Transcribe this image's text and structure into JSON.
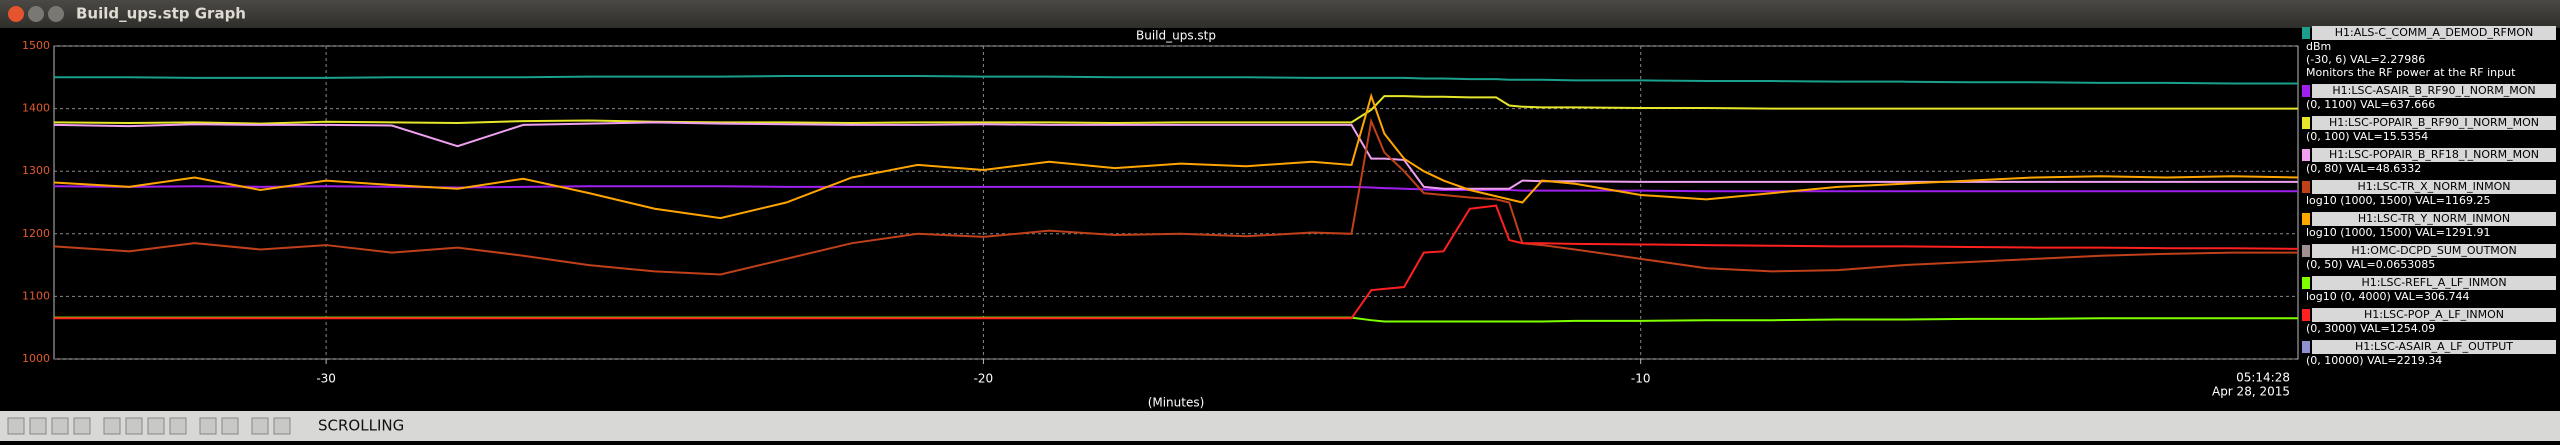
{
  "window": {
    "title": "Build_ups.stp Graph"
  },
  "chart_data": {
    "type": "line",
    "title": "Build_ups.stp",
    "xlabel": "(Minutes)",
    "time_label": "05:14:28",
    "date_label": "Apr 28, 2015",
    "xlim": [
      -34.14,
      0
    ],
    "xticks": [
      -30,
      -20,
      -10
    ],
    "ylim": [
      1000,
      1500
    ],
    "yticks": [
      1000,
      1100,
      1200,
      1300,
      1400,
      1500
    ],
    "grid": true,
    "x": [
      -34.14,
      -33,
      -32,
      -31,
      -30,
      -29,
      -28,
      -27,
      -26,
      -25,
      -24,
      -23,
      -22,
      -21,
      -20,
      -19,
      -18,
      -17,
      -16,
      -15,
      -14.4,
      -14.1,
      -13.9,
      -13.6,
      -13.3,
      -13.0,
      -12.6,
      -12.2,
      -12.0,
      -11.8,
      -11.5,
      -11,
      -10,
      -9,
      -8,
      -7,
      -6,
      -5,
      -4,
      -3,
      -2,
      -1,
      0
    ],
    "series": [
      {
        "name": "H1:ALS-C_COMM_A_DEMOD_RFMON",
        "color": "#1aa08c",
        "info": [
          "dBm",
          "(-30, 6) VAL=2.27986",
          "Monitors the RF power at the RF input"
        ],
        "values": [
          1450,
          1450,
          1449,
          1449,
          1449,
          1450,
          1450,
          1450,
          1451,
          1451,
          1451,
          1452,
          1452,
          1452,
          1451,
          1451,
          1450,
          1450,
          1450,
          1449,
          1449,
          1449,
          1449,
          1449,
          1448,
          1448,
          1447,
          1447,
          1446,
          1446,
          1446,
          1445,
          1445,
          1444,
          1444,
          1443,
          1443,
          1442,
          1442,
          1441,
          1441,
          1440,
          1440
        ]
      },
      {
        "name": "H1:LSC-ASAIR_B_RF90_I_NORM_MON",
        "color": "#a020f0",
        "info": [
          "(0, 1100) VAL=637.666"
        ],
        "values": [
          1276,
          1275,
          1276,
          1275,
          1276,
          1275,
          1274,
          1275,
          1276,
          1276,
          1276,
          1275,
          1275,
          1275,
          1275,
          1275,
          1275,
          1275,
          1275,
          1275,
          1275,
          1274,
          1273,
          1272,
          1271,
          1270,
          1270,
          1270,
          1270,
          1269,
          1269,
          1269,
          1269,
          1268,
          1268,
          1268,
          1268,
          1268,
          1268,
          1268,
          1268,
          1268,
          1268
        ]
      },
      {
        "name": "H1:LSC-POPAIR_B_RF90_I_NORM_MON",
        "color": "#e6e62a",
        "info": [
          "(0, 100) VAL=15.5354"
        ],
        "values": [
          1378,
          1377,
          1378,
          1376,
          1379,
          1378,
          1377,
          1380,
          1381,
          1379,
          1378,
          1378,
          1377,
          1378,
          1378,
          1378,
          1377,
          1378,
          1378,
          1378,
          1378,
          1398,
          1420,
          1420,
          1419,
          1419,
          1418,
          1418,
          1405,
          1403,
          1402,
          1402,
          1401,
          1401,
          1400,
          1400,
          1400,
          1400,
          1400,
          1400,
          1400,
          1400,
          1400
        ]
      },
      {
        "name": "H1:LSC-POPAIR_B_RF18_I_NORM_MON",
        "color": "#f0a0f0",
        "info": [
          "(0, 80) VAL=48.6332"
        ],
        "values": [
          1374,
          1372,
          1375,
          1374,
          1374,
          1373,
          1340,
          1374,
          1376,
          1378,
          1376,
          1375,
          1374,
          1374,
          1375,
          1374,
          1374,
          1374,
          1374,
          1374,
          1374,
          1320,
          1320,
          1318,
          1275,
          1272,
          1272,
          1272,
          1272,
          1285,
          1284,
          1284,
          1283,
          1283,
          1283,
          1283,
          1283,
          1283,
          1283,
          1283,
          1283,
          1283,
          1283
        ]
      },
      {
        "name": "H1:LSC-TR_X_NORM_INMON",
        "color": "#c0401a",
        "info": [
          "log10 (1000, 1500) VAL=1169.25"
        ],
        "values": [
          1180,
          1172,
          1185,
          1175,
          1182,
          1170,
          1178,
          1165,
          1150,
          1140,
          1135,
          1160,
          1185,
          1200,
          1195,
          1205,
          1198,
          1200,
          1196,
          1202,
          1200,
          1380,
          1330,
          1300,
          1265,
          1262,
          1258,
          1255,
          1250,
          1185,
          1182,
          1175,
          1160,
          1145,
          1140,
          1142,
          1150,
          1155,
          1160,
          1165,
          1168,
          1170,
          1170
        ]
      },
      {
        "name": "H1:LSC-TR_Y_NORM_INMON",
        "color": "#ffa500",
        "info": [
          "log10 (1000, 1500) VAL=1291.91"
        ],
        "values": [
          1282,
          1275,
          1290,
          1270,
          1285,
          1278,
          1272,
          1288,
          1265,
          1240,
          1225,
          1250,
          1290,
          1310,
          1302,
          1315,
          1305,
          1312,
          1308,
          1315,
          1310,
          1420,
          1360,
          1320,
          1300,
          1285,
          1270,
          1260,
          1255,
          1250,
          1285,
          1280,
          1262,
          1255,
          1265,
          1275,
          1280,
          1285,
          1290,
          1292,
          1290,
          1292,
          1290
        ]
      },
      {
        "name": "H1:OMC-DCPD_SUM_OUTMON",
        "color": "#a09090",
        "info": [
          "(0, 50) VAL=0.0653085"
        ],
        "values": [
          null,
          null,
          null,
          null,
          null,
          null,
          null,
          null,
          null,
          null,
          null,
          null,
          null,
          null,
          null,
          null,
          null,
          null,
          null,
          null,
          null,
          null,
          null,
          null,
          null,
          null,
          null,
          null,
          null,
          null,
          null,
          null,
          null,
          null,
          null,
          null,
          null,
          null,
          null,
          null,
          null,
          null,
          null
        ]
      },
      {
        "name": "H1:LSC-REFL_A_LF_INMON",
        "color": "#7fff00",
        "info": [
          "log10 (0, 4000) VAL=306.744"
        ],
        "values": [
          1066,
          1066,
          1066,
          1066,
          1066,
          1066,
          1066,
          1066,
          1066,
          1066,
          1066,
          1066,
          1066,
          1066,
          1066,
          1066,
          1066,
          1066,
          1066,
          1066,
          1066,
          1062,
          1060,
          1060,
          1060,
          1060,
          1060,
          1060,
          1060,
          1060,
          1060,
          1061,
          1061,
          1062,
          1062,
          1063,
          1063,
          1064,
          1064,
          1065,
          1065,
          1065,
          1065
        ]
      },
      {
        "name": "H1:LSC-POP_A_LF_INMON",
        "color": "#ff2020",
        "info": [
          "(0, 3000) VAL=1254.09"
        ],
        "values": [
          1065,
          1065,
          1065,
          1065,
          1065,
          1065,
          1065,
          1065,
          1065,
          1065,
          1065,
          1065,
          1065,
          1065,
          1065,
          1065,
          1065,
          1065,
          1065,
          1065,
          1065,
          1110,
          1112,
          1115,
          1170,
          1172,
          1240,
          1245,
          1190,
          1185,
          1185,
          1184,
          1183,
          1182,
          1181,
          1180,
          1180,
          1179,
          1178,
          1178,
          1177,
          1177,
          1176
        ]
      },
      {
        "name": "H1:LSC-ASAIR_A_LF_OUTPUT",
        "color": "#9090d0",
        "info": [
          "(0, 10000) VAL=2219.34"
        ],
        "values": [
          null,
          null,
          null,
          null,
          null,
          null,
          null,
          null,
          null,
          null,
          null,
          null,
          null,
          null,
          null,
          null,
          null,
          null,
          null,
          null,
          null,
          null,
          null,
          null,
          null,
          null,
          null,
          null,
          null,
          null,
          null,
          null,
          null,
          null,
          null,
          null,
          null,
          null,
          null,
          null,
          null,
          null,
          null
        ]
      }
    ]
  },
  "status": {
    "mode": "SCROLLING"
  }
}
